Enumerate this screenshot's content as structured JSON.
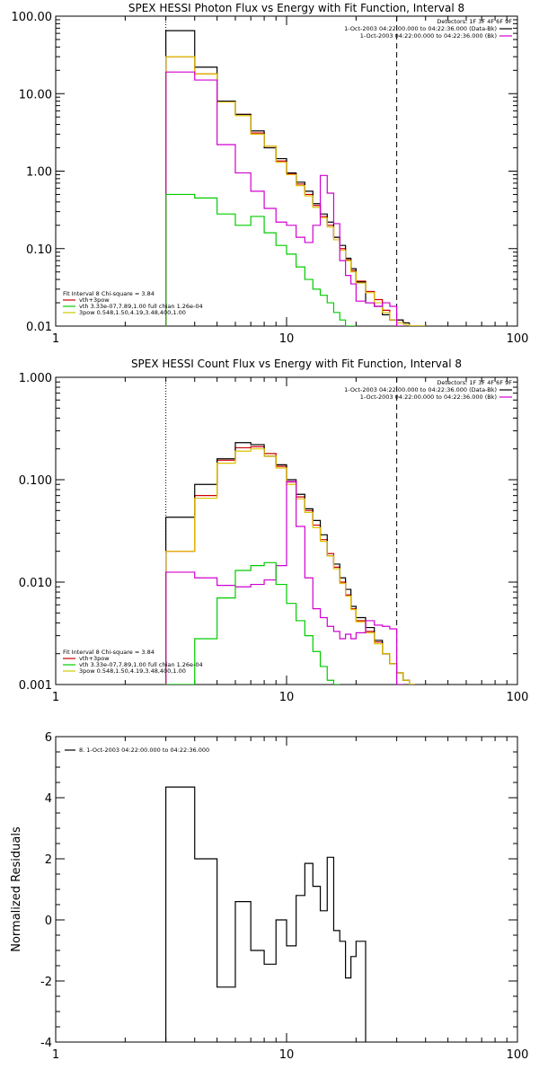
{
  "chart_data": [
    {
      "id": "photon",
      "type": "line",
      "title": "SPEX HESSI Photon Flux vs Energy with Fit Function, Interval 8",
      "xlabel": "",
      "ylabel": "",
      "x_scale": "log",
      "y_scale": "log",
      "xlim": [
        1,
        100
      ],
      "ylim": [
        0.01,
        100
      ],
      "x_ticks": [
        1,
        10,
        100
      ],
      "x_tick_labels": [
        "1",
        "10",
        "100"
      ],
      "y_ticks": [
        0.01,
        0.1,
        1,
        10,
        100
      ],
      "y_tick_labels": [
        "0.01",
        "0.10",
        "1.00",
        "10.00",
        "100.00"
      ],
      "vlines": [
        {
          "x": 3,
          "style": "dotted",
          "color": "#000000"
        },
        {
          "x": 30,
          "style": "dashed",
          "color": "#000000"
        }
      ],
      "legend_top_right": {
        "header": "Detectors: 1F 3F 4F 6F 9F",
        "entries": [
          {
            "label": "1-Oct-2003 04:22:00.000 to 04:22:36.000 (Data-Bk)",
            "color": "#000000"
          },
          {
            "label": "1-Oct-2003 04:22:00.000 to 04:22:36.000 (Bk)",
            "color": "#d000d0"
          }
        ]
      },
      "legend_bottom_left": {
        "header": "Fit Interval 8   Chi-square = 3.84",
        "entries": [
          {
            "label": "vth+3pow",
            "color": "#cc0000"
          },
          {
            "label": "vth 3.33e-07,7.89,1.00  full chian 1.26e-04",
            "color": "#00cc00"
          },
          {
            "label": "3pow 0.548,1.50,4.19,3.48,400,1.00",
            "color": "#cccc00"
          }
        ]
      },
      "edges": [
        3,
        4,
        5,
        6,
        7,
        8,
        9,
        10,
        11,
        12,
        13,
        14,
        15,
        16,
        17,
        18,
        19,
        20,
        22,
        24,
        26,
        28,
        30,
        32,
        34,
        36,
        38,
        40
      ],
      "series": [
        {
          "name": "vth+3pow",
          "color": "#cc0000",
          "values": [
            30,
            18,
            8.0,
            5.4,
            3.1,
            2.1,
            1.35,
            0.92,
            0.68,
            0.5,
            0.36,
            0.26,
            0.2,
            0.14,
            0.1,
            0.072,
            0.052,
            0.038,
            0.028,
            0.022,
            0.016,
            0.012,
            0.012,
            0.011,
            0.01,
            0.01,
            0.01
          ]
        },
        {
          "name": "Data-Bk",
          "color": "#000000",
          "values": [
            65,
            22,
            8.0,
            5.4,
            3.3,
            2.0,
            1.45,
            0.95,
            0.72,
            0.55,
            0.38,
            0.28,
            0.22,
            0.14,
            0.11,
            0.075,
            0.055,
            0.037,
            0.02,
            0.018,
            0.014,
            0.012,
            0.012,
            0.011,
            0.01,
            0.01,
            0.01
          ]
        },
        {
          "name": "3pow",
          "color": "#e0c000",
          "values": [
            30,
            18,
            7.8,
            5.2,
            3.0,
            2.1,
            1.3,
            0.9,
            0.65,
            0.48,
            0.34,
            0.25,
            0.19,
            0.13,
            0.095,
            0.07,
            0.05,
            0.036,
            0.027,
            0.02,
            0.015,
            0.012,
            0.011,
            0.0105,
            0.01,
            0.01,
            0.01
          ]
        },
        {
          "name": "Bk",
          "color": "#d000d0",
          "values": [
            19,
            15,
            2.2,
            0.95,
            0.55,
            0.33,
            0.22,
            0.2,
            0.14,
            0.12,
            0.2,
            0.88,
            0.52,
            0.21,
            0.07,
            0.045,
            0.035,
            0.021,
            0.02,
            0.018,
            0.02,
            0.018,
            0.01
          ]
        },
        {
          "name": "vth",
          "color": "#00cc00",
          "values": [
            0.5,
            0.45,
            0.28,
            0.2,
            0.26,
            0.16,
            0.11,
            0.085,
            0.058,
            0.04,
            0.03,
            0.025,
            0.02,
            0.015,
            0.012,
            0.01,
            0.01
          ]
        }
      ]
    },
    {
      "id": "count",
      "type": "line",
      "title": "SPEX HESSI Count Flux vs Energy with Fit Function, Interval 8",
      "xlabel": "",
      "ylabel": "",
      "x_scale": "log",
      "y_scale": "log",
      "xlim": [
        1,
        100
      ],
      "ylim": [
        0.001,
        1
      ],
      "x_ticks": [
        1,
        10,
        100
      ],
      "x_tick_labels": [
        "1",
        "10",
        "100"
      ],
      "y_ticks": [
        0.001,
        0.01,
        0.1,
        1
      ],
      "y_tick_labels": [
        "0.001",
        "0.010",
        "0.100",
        "1.000"
      ],
      "vlines": [
        {
          "x": 3,
          "style": "dotted",
          "color": "#000000"
        },
        {
          "x": 30,
          "style": "dashed",
          "color": "#000000"
        }
      ],
      "legend_top_right": {
        "header": "Detectors: 1F 3F 4F 6F 9F",
        "entries": [
          {
            "label": "1-Oct-2003 04:22:00.000 to 04:22:36.000 (Data-Bk)",
            "color": "#000000"
          },
          {
            "label": "1-Oct-2003 04:22:00.000 to 04:22:36.000 (Bk)",
            "color": "#d000d0"
          }
        ]
      },
      "legend_bottom_left": {
        "header": "Fit Interval 8   Chi-square = 3.84",
        "entries": [
          {
            "label": "vth+3pow",
            "color": "#cc0000"
          },
          {
            "label": "vth 3.33e-07,7.89,1.00  full chian 1.26e-04",
            "color": "#00cc00"
          },
          {
            "label": "3pow 0.548,1.50,4.19,3.48,400,1.00",
            "color": "#cccc00"
          }
        ]
      },
      "edges": [
        3,
        4,
        5,
        6,
        7,
        8,
        9,
        10,
        11,
        12,
        13,
        14,
        15,
        16,
        17,
        18,
        19,
        20,
        22,
        24,
        26,
        28,
        30,
        32,
        34,
        36,
        38,
        40,
        42,
        45
      ],
      "series": [
        {
          "name": "vth+3pow",
          "color": "#cc0000",
          "values": [
            0.02,
            0.07,
            0.155,
            0.205,
            0.21,
            0.18,
            0.135,
            0.095,
            0.068,
            0.05,
            0.036,
            0.026,
            0.019,
            0.014,
            0.01,
            0.0075,
            0.0055,
            0.0042,
            0.0033,
            0.0026,
            0.002,
            0.0016,
            0.0013,
            0.0011,
            0.001
          ]
        },
        {
          "name": "Data-Bk",
          "color": "#000000",
          "values": [
            0.043,
            0.09,
            0.16,
            0.23,
            0.22,
            0.17,
            0.14,
            0.1,
            0.072,
            0.052,
            0.04,
            0.029,
            0.018,
            0.015,
            0.011,
            0.0085,
            0.0058,
            0.0045,
            0.0036,
            0.0027,
            0.002,
            0.0016,
            0.0013,
            0.0011,
            0.001
          ]
        },
        {
          "name": "3pow",
          "color": "#e0c000",
          "values": [
            0.02,
            0.066,
            0.145,
            0.19,
            0.2,
            0.17,
            0.13,
            0.09,
            0.065,
            0.048,
            0.034,
            0.025,
            0.018,
            0.0135,
            0.0097,
            0.0073,
            0.0054,
            0.0041,
            0.0032,
            0.0025,
            0.002,
            0.0016,
            0.0013,
            0.0011,
            0.001
          ]
        },
        {
          "name": "Bk",
          "color": "#d000d0",
          "values": [
            0.0125,
            0.011,
            0.0093,
            0.009,
            0.0095,
            0.0105,
            0.0145,
            0.096,
            0.035,
            0.011,
            0.0055,
            0.0045,
            0.0037,
            0.0033,
            0.0028,
            0.0031,
            0.0028,
            0.0032,
            0.0042,
            0.0038,
            0.0037,
            0.0035,
            0.001
          ]
        },
        {
          "name": "vth",
          "color": "#00cc00",
          "values": [
            0.001,
            0.0028,
            0.007,
            0.013,
            0.0145,
            0.0155,
            0.0095,
            0.0062,
            0.0042,
            0.003,
            0.0021,
            0.0015,
            0.0011,
            0.001
          ]
        }
      ]
    },
    {
      "id": "residuals",
      "type": "line",
      "title": "",
      "xlabel": "",
      "ylabel": "Normalized Residuals",
      "x_scale": "log",
      "y_scale": "linear",
      "xlim": [
        1,
        100
      ],
      "ylim": [
        -4,
        6
      ],
      "x_ticks": [
        1,
        10,
        100
      ],
      "x_tick_labels": [
        "1",
        "10",
        "100"
      ],
      "y_ticks": [
        -4,
        -2,
        0,
        2,
        4,
        6
      ],
      "y_tick_labels": [
        "-4",
        "-2",
        "0",
        "2",
        "4",
        "6"
      ],
      "legend_top_left": {
        "entries": [
          {
            "label": "8. 1-Oct-2003 04:22:00.000 to 04:22:36.000",
            "color": "#000000"
          }
        ]
      },
      "edges": [
        3,
        4,
        5,
        6,
        7,
        8,
        9,
        10,
        11,
        12,
        13,
        14,
        15,
        16,
        17,
        18,
        19,
        20,
        22,
        24,
        26,
        28,
        30
      ],
      "series": [
        {
          "name": "residuals",
          "color": "#000000",
          "values": [
            4.35,
            2.0,
            -2.2,
            0.6,
            -1.0,
            -1.45,
            0.0,
            -0.85,
            0.8,
            1.85,
            1.1,
            0.3,
            2.05,
            -0.35,
            -0.7,
            -1.9,
            -1.2,
            -0.7
          ]
        }
      ]
    }
  ]
}
